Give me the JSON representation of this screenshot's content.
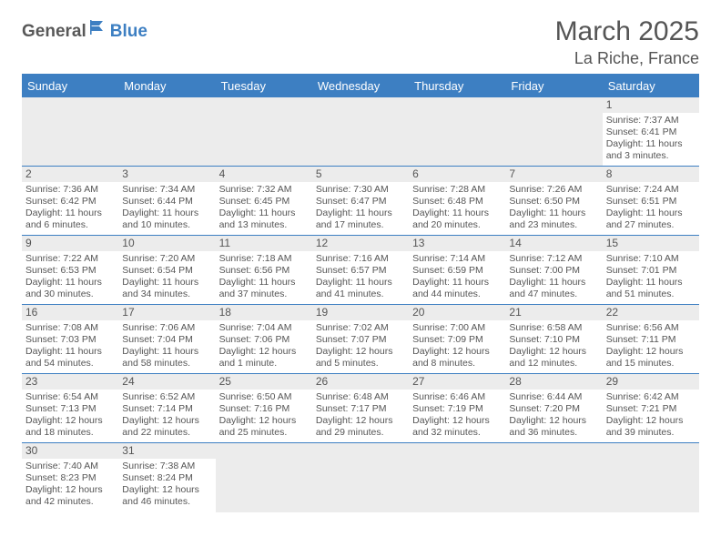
{
  "logo": {
    "part1": "General",
    "part2": "Blue"
  },
  "title": {
    "month": "March 2025",
    "location": "La Riche, France"
  },
  "headers": [
    "Sunday",
    "Monday",
    "Tuesday",
    "Wednesday",
    "Thursday",
    "Friday",
    "Saturday"
  ],
  "colors": {
    "accent": "#3d7fc2",
    "text": "#555555",
    "bg": "#ffffff",
    "stripe": "#ececec"
  },
  "layout": {
    "first_weekday_index": 6,
    "days_in_month": 31
  },
  "days": {
    "1": {
      "sunrise": "7:37 AM",
      "sunset": "6:41 PM",
      "daylight": "11 hours and 3 minutes."
    },
    "2": {
      "sunrise": "7:36 AM",
      "sunset": "6:42 PM",
      "daylight": "11 hours and 6 minutes."
    },
    "3": {
      "sunrise": "7:34 AM",
      "sunset": "6:44 PM",
      "daylight": "11 hours and 10 minutes."
    },
    "4": {
      "sunrise": "7:32 AM",
      "sunset": "6:45 PM",
      "daylight": "11 hours and 13 minutes."
    },
    "5": {
      "sunrise": "7:30 AM",
      "sunset": "6:47 PM",
      "daylight": "11 hours and 17 minutes."
    },
    "6": {
      "sunrise": "7:28 AM",
      "sunset": "6:48 PM",
      "daylight": "11 hours and 20 minutes."
    },
    "7": {
      "sunrise": "7:26 AM",
      "sunset": "6:50 PM",
      "daylight": "11 hours and 23 minutes."
    },
    "8": {
      "sunrise": "7:24 AM",
      "sunset": "6:51 PM",
      "daylight": "11 hours and 27 minutes."
    },
    "9": {
      "sunrise": "7:22 AM",
      "sunset": "6:53 PM",
      "daylight": "11 hours and 30 minutes."
    },
    "10": {
      "sunrise": "7:20 AM",
      "sunset": "6:54 PM",
      "daylight": "11 hours and 34 minutes."
    },
    "11": {
      "sunrise": "7:18 AM",
      "sunset": "6:56 PM",
      "daylight": "11 hours and 37 minutes."
    },
    "12": {
      "sunrise": "7:16 AM",
      "sunset": "6:57 PM",
      "daylight": "11 hours and 41 minutes."
    },
    "13": {
      "sunrise": "7:14 AM",
      "sunset": "6:59 PM",
      "daylight": "11 hours and 44 minutes."
    },
    "14": {
      "sunrise": "7:12 AM",
      "sunset": "7:00 PM",
      "daylight": "11 hours and 47 minutes."
    },
    "15": {
      "sunrise": "7:10 AM",
      "sunset": "7:01 PM",
      "daylight": "11 hours and 51 minutes."
    },
    "16": {
      "sunrise": "7:08 AM",
      "sunset": "7:03 PM",
      "daylight": "11 hours and 54 minutes."
    },
    "17": {
      "sunrise": "7:06 AM",
      "sunset": "7:04 PM",
      "daylight": "11 hours and 58 minutes."
    },
    "18": {
      "sunrise": "7:04 AM",
      "sunset": "7:06 PM",
      "daylight": "12 hours and 1 minute."
    },
    "19": {
      "sunrise": "7:02 AM",
      "sunset": "7:07 PM",
      "daylight": "12 hours and 5 minutes."
    },
    "20": {
      "sunrise": "7:00 AM",
      "sunset": "7:09 PM",
      "daylight": "12 hours and 8 minutes."
    },
    "21": {
      "sunrise": "6:58 AM",
      "sunset": "7:10 PM",
      "daylight": "12 hours and 12 minutes."
    },
    "22": {
      "sunrise": "6:56 AM",
      "sunset": "7:11 PM",
      "daylight": "12 hours and 15 minutes."
    },
    "23": {
      "sunrise": "6:54 AM",
      "sunset": "7:13 PM",
      "daylight": "12 hours and 18 minutes."
    },
    "24": {
      "sunrise": "6:52 AM",
      "sunset": "7:14 PM",
      "daylight": "12 hours and 22 minutes."
    },
    "25": {
      "sunrise": "6:50 AM",
      "sunset": "7:16 PM",
      "daylight": "12 hours and 25 minutes."
    },
    "26": {
      "sunrise": "6:48 AM",
      "sunset": "7:17 PM",
      "daylight": "12 hours and 29 minutes."
    },
    "27": {
      "sunrise": "6:46 AM",
      "sunset": "7:19 PM",
      "daylight": "12 hours and 32 minutes."
    },
    "28": {
      "sunrise": "6:44 AM",
      "sunset": "7:20 PM",
      "daylight": "12 hours and 36 minutes."
    },
    "29": {
      "sunrise": "6:42 AM",
      "sunset": "7:21 PM",
      "daylight": "12 hours and 39 minutes."
    },
    "30": {
      "sunrise": "7:40 AM",
      "sunset": "8:23 PM",
      "daylight": "12 hours and 42 minutes."
    },
    "31": {
      "sunrise": "7:38 AM",
      "sunset": "8:24 PM",
      "daylight": "12 hours and 46 minutes."
    }
  },
  "labels": {
    "sunrise": "Sunrise:",
    "sunset": "Sunset:",
    "daylight": "Daylight:"
  }
}
